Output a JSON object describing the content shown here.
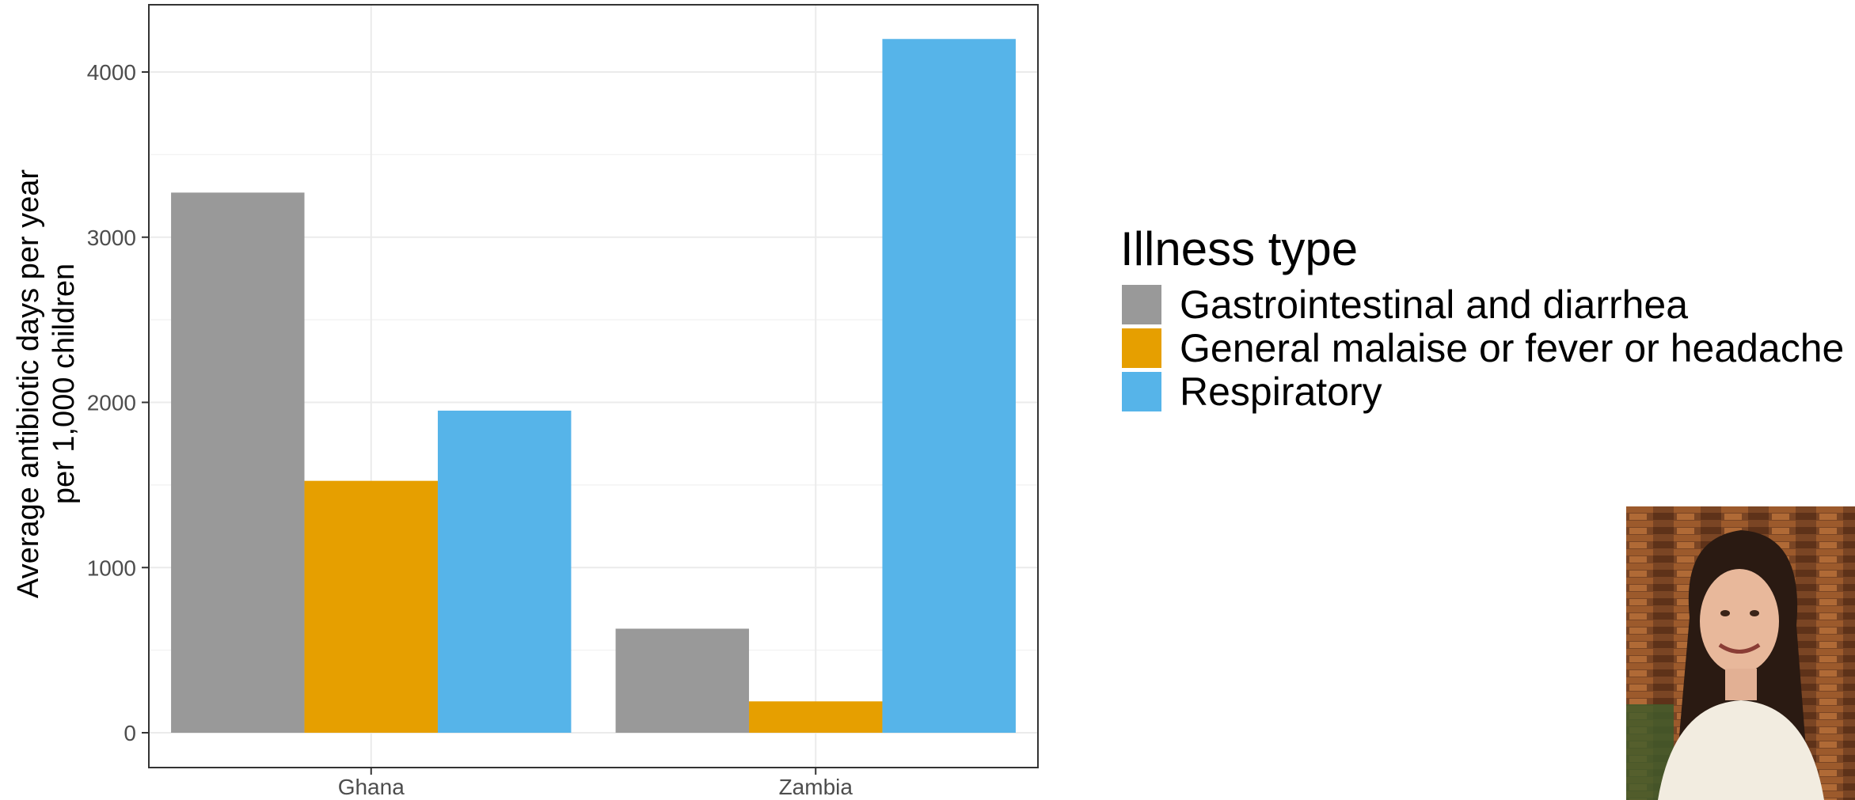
{
  "chart_data": {
    "type": "bar",
    "categories": [
      "Ghana",
      "Zambia"
    ],
    "series": [
      {
        "name": "Gastrointestinal and diarrhea",
        "values": [
          3270,
          630
        ],
        "color": "#999999"
      },
      {
        "name": "General malaise or fever or headache",
        "values": [
          1525,
          190
        ],
        "color": "#E69F00"
      },
      {
        "name": "Respiratory",
        "values": [
          1950,
          4200
        ],
        "color": "#56B4E9"
      }
    ],
    "ylabel_lines": [
      "Average antibiotic days per year",
      "per 1,000 children"
    ],
    "xlabel": "",
    "ylim": [
      -200,
      4400
    ],
    "yticks": [
      0,
      1000,
      2000,
      3000,
      4000
    ],
    "grid": true,
    "legend": {
      "title": "Illness type",
      "placement": "right"
    }
  },
  "overlay": {
    "speaker_photo": "speaker-webcam-photo"
  }
}
